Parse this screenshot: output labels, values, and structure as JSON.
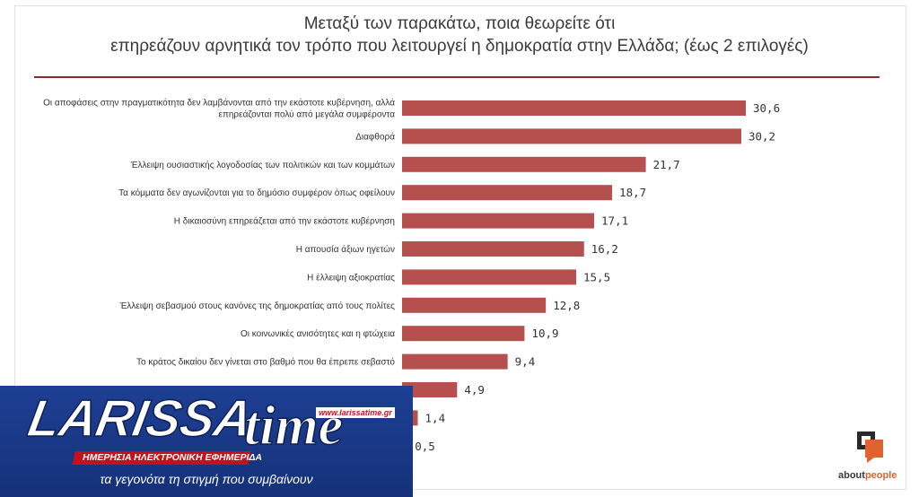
{
  "title_line1": "Μεταξύ των παρακάτω, ποια θεωρείτε ότι",
  "title_line2": "επηρεάζουν αρνητικά τον τρόπο που λειτουργεί η δημοκρατία στην Ελλάδα; (έως 2 επιλογές)",
  "colors": {
    "bar": "#b5504f",
    "title_rule": "#8b2a2a",
    "overlay_bg": "#1d3f93",
    "overlay_red": "#c4121c",
    "aboutpeople_accent": "#e0632f"
  },
  "chart_data": {
    "type": "bar",
    "orientation": "horizontal",
    "title": "Μεταξύ των παρακάτω, ποια θεωρείτε ότι επηρεάζουν αρνητικά τον τρόπο που λειτουργεί η δημοκρατία στην Ελλάδα; (έως 2 επιλογές)",
    "xlim": [
      0,
      30.6
    ],
    "categories": [
      [
        "Οι αποφάσεις στην πραγματικότητα δεν λαμβάνονται από την εκάστοτε κυβέρνηση, αλλά",
        "επηρεάζονται πολύ από μεγάλα συμφέροντα"
      ],
      [
        "Διαφθορά"
      ],
      [
        "Έλλειψη ουσιαστικής λογοδοσίας των πολιτικών και των κομμάτων"
      ],
      [
        "Τα κόμματα δεν αγωνίζονται για το δημόσιο συμφέρον όπως οφείλουν"
      ],
      [
        "Η δικαιοσύνη επηρεάζεται από την εκάστοτε κυβέρνηση"
      ],
      [
        "Η απουσία άξιων ηγετών"
      ],
      [
        "Η έλλειψη αξιοκρατίας"
      ],
      [
        "Έλλειψη σεβασμού στους κανόνες της δημοκρατίας από τους πολίτες"
      ],
      [
        "Οι κοινωνικές ανισότητες και η φτώχεια"
      ],
      [
        "Το κράτος δικαίου δεν γίνεται στο βαθμό που θα έπρεπε σεβαστό"
      ],
      [
        ""
      ],
      [
        ""
      ],
      [
        ""
      ]
    ],
    "values": [
      30.6,
      30.2,
      21.7,
      18.7,
      17.1,
      16.2,
      15.5,
      12.8,
      10.9,
      9.4,
      4.9,
      1.4,
      0.5
    ],
    "value_labels": [
      "30,6",
      "30,2",
      "21,7",
      "18,7",
      "17,1",
      "16,2",
      "15,5",
      "12,8",
      "10,9",
      "9,4",
      "4,9",
      "1,4",
      "0,5"
    ]
  },
  "aboutpeople": {
    "part1": "about",
    "part2": "people"
  },
  "overlay": {
    "brand_main": "LARISSA",
    "brand_script": "time",
    "url": "www.larissatime.gr",
    "subtitle": "ΗΜΕΡΗΣΙΑ ΗΛΕΚΤΡΟΝΙΚΗ ΕΦΗΜΕΡΙΔΑ",
    "tagline": "τα γεγονότα τη στιγμή που συμβαίνουν"
  }
}
